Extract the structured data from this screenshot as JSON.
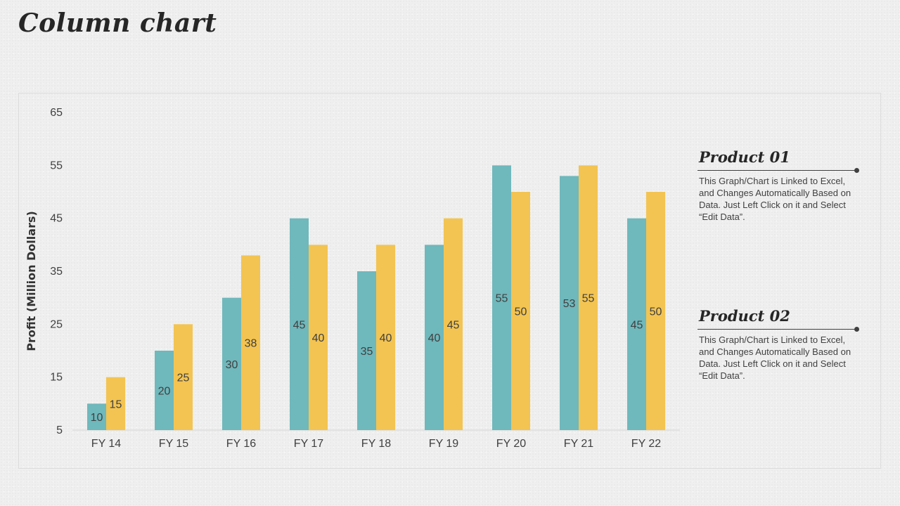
{
  "title": "Column chart",
  "chart_data": {
    "type": "bar",
    "categories": [
      "FY 14",
      "FY 15",
      "FY 16",
      "FY 17",
      "FY 18",
      "FY 19",
      "FY 20",
      "FY 21",
      "FY 22"
    ],
    "series": [
      {
        "name": "Product 01",
        "values": [
          10,
          20,
          30,
          45,
          35,
          40,
          55,
          53,
          45
        ],
        "color": "#6fb8bc"
      },
      {
        "name": "Product 02",
        "values": [
          15,
          25,
          38,
          40,
          40,
          45,
          50,
          55,
          50
        ],
        "color": "#f3c451"
      }
    ],
    "ylabel": "Profit  (Million Dollars)",
    "xlabel": "",
    "ylim": [
      5,
      65
    ],
    "yticks": [
      5,
      15,
      25,
      35,
      45,
      55,
      65
    ],
    "grid": false,
    "data_labels": true,
    "legend_placement": "right"
  },
  "legend": [
    {
      "name": "Product 01",
      "description": "This Graph/Chart is Linked to Excel, and Changes Automatically Based on Data. Just Left Click on it and Select “Edit Data”."
    },
    {
      "name": "Product 02",
      "description": "This Graph/Chart is Linked to Excel, and Changes Automatically Based on Data. Just Left Click on it and Select “Edit Data”."
    }
  ]
}
